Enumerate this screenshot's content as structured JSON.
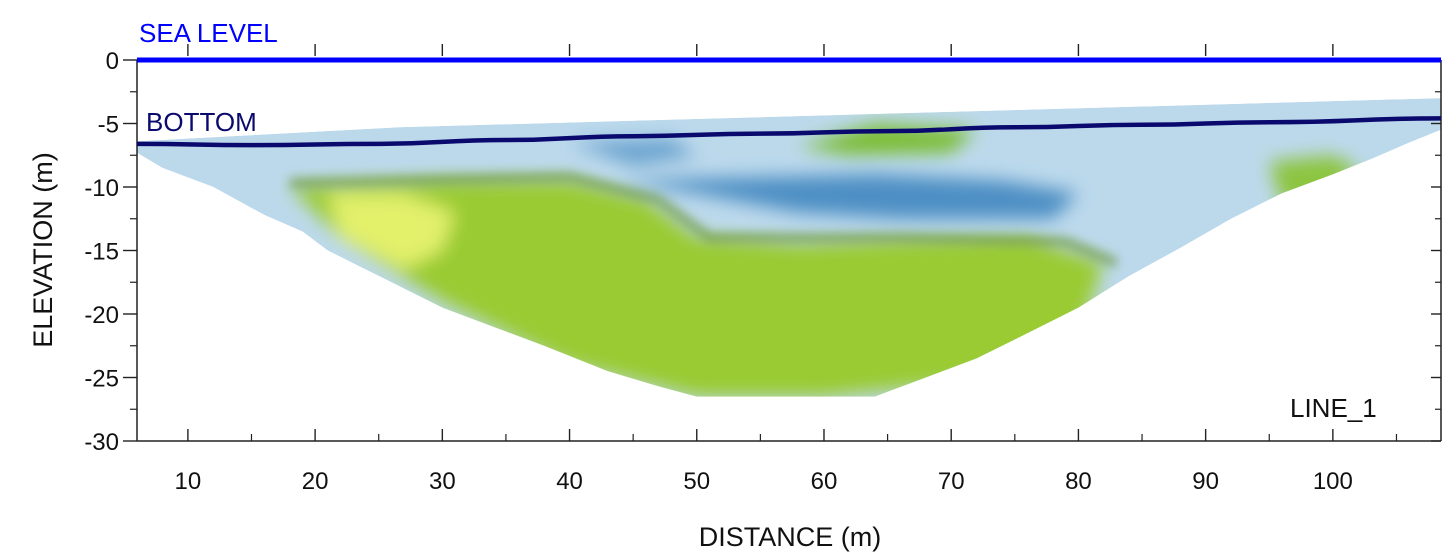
{
  "chart_data": {
    "type": "heatmap",
    "title": "",
    "xlabel": "DISTANCE (m)",
    "ylabel": "ELEVATION (m)",
    "xlim": [
      6,
      108.5
    ],
    "ylim": [
      -30,
      0
    ],
    "x_ticks": [
      "10",
      "20",
      "30",
      "40",
      "50",
      "60",
      "70",
      "80",
      "90",
      "100"
    ],
    "y_ticks": [
      "0",
      "-5",
      "-10",
      "-15",
      "-20",
      "-25",
      "-30"
    ],
    "sea_level": {
      "label": "SEA LEVEL",
      "y": 0,
      "color": "#0000ff"
    },
    "bottom": {
      "label": "BOTTOM",
      "color": "#0a0a6e",
      "x": [
        6,
        15,
        25,
        35,
        45,
        55,
        65,
        75,
        85,
        95,
        108.5
      ],
      "y": [
        -6.6,
        -6.7,
        -6.6,
        -6.3,
        -6.0,
        -5.8,
        -5.6,
        -5.3,
        -5.1,
        -4.9,
        -4.6
      ]
    },
    "section_label": "LINE_1",
    "section_outline": {
      "x": [
        6,
        8,
        12,
        16,
        19,
        21,
        24,
        27,
        30,
        34,
        38,
        43,
        47,
        50,
        55,
        60,
        64,
        68,
        72,
        76,
        80,
        84,
        88,
        92,
        96,
        100,
        103,
        106,
        108.5,
        108.5,
        26.5,
        6
      ],
      "y": [
        -7.3,
        -8.5,
        -10.0,
        -12.2,
        -13.5,
        -15.0,
        -16.5,
        -18.0,
        -19.5,
        -21.0,
        -22.5,
        -24.5,
        -25.7,
        -26.5,
        -26.5,
        -26.5,
        -26.5,
        -25.0,
        -23.5,
        -21.5,
        -19.5,
        -17.0,
        -14.8,
        -12.5,
        -10.5,
        -9.0,
        -7.8,
        -6.5,
        -5.5,
        -3.0,
        -5.3,
        -6.4
      ]
    },
    "units": [
      {
        "color": "#9acb33",
        "x": [
          18,
          30,
          40,
          46,
          50,
          58,
          66,
          76,
          82,
          80,
          70,
          60,
          50,
          40,
          30,
          22,
          18
        ],
        "y": [
          -10,
          -9.5,
          -9.5,
          -11,
          -14,
          -14.5,
          -14.2,
          -14,
          -16,
          -22,
          -25.5,
          -26.5,
          -26.5,
          -24,
          -19,
          -14,
          -10
        ]
      },
      {
        "color": "#4e8fc4",
        "x": [
          44,
          64,
          74,
          80,
          78,
          66,
          58,
          50,
          44
        ],
        "y": [
          -9.5,
          -9.0,
          -9.5,
          -10.5,
          -12.5,
          -12.5,
          -12.0,
          -10.5,
          -9.5
        ]
      },
      {
        "color": "#e2f06a",
        "x": [
          21,
          27,
          31,
          30,
          27,
          22,
          21
        ],
        "y": [
          -10.5,
          -10.5,
          -12,
          -15,
          -16.5,
          -14,
          -10.5
        ]
      },
      {
        "color": "#7cbd34",
        "x": [
          58,
          64,
          72,
          70,
          62,
          58
        ],
        "y": [
          -6.8,
          -5,
          -5.5,
          -7.3,
          -7.5,
          -6.8
        ]
      },
      {
        "color": "#8cc540",
        "x": [
          95,
          100,
          102,
          100,
          96,
          95
        ],
        "y": [
          -8.0,
          -7.5,
          -8.5,
          -11,
          -11.5,
          -8.0
        ]
      },
      {
        "color": "#6aa3cf",
        "x": [
          40,
          48,
          50,
          45,
          40
        ],
        "y": [
          -6.5,
          -6.2,
          -7.5,
          -8.3,
          -6.5
        ]
      }
    ]
  }
}
